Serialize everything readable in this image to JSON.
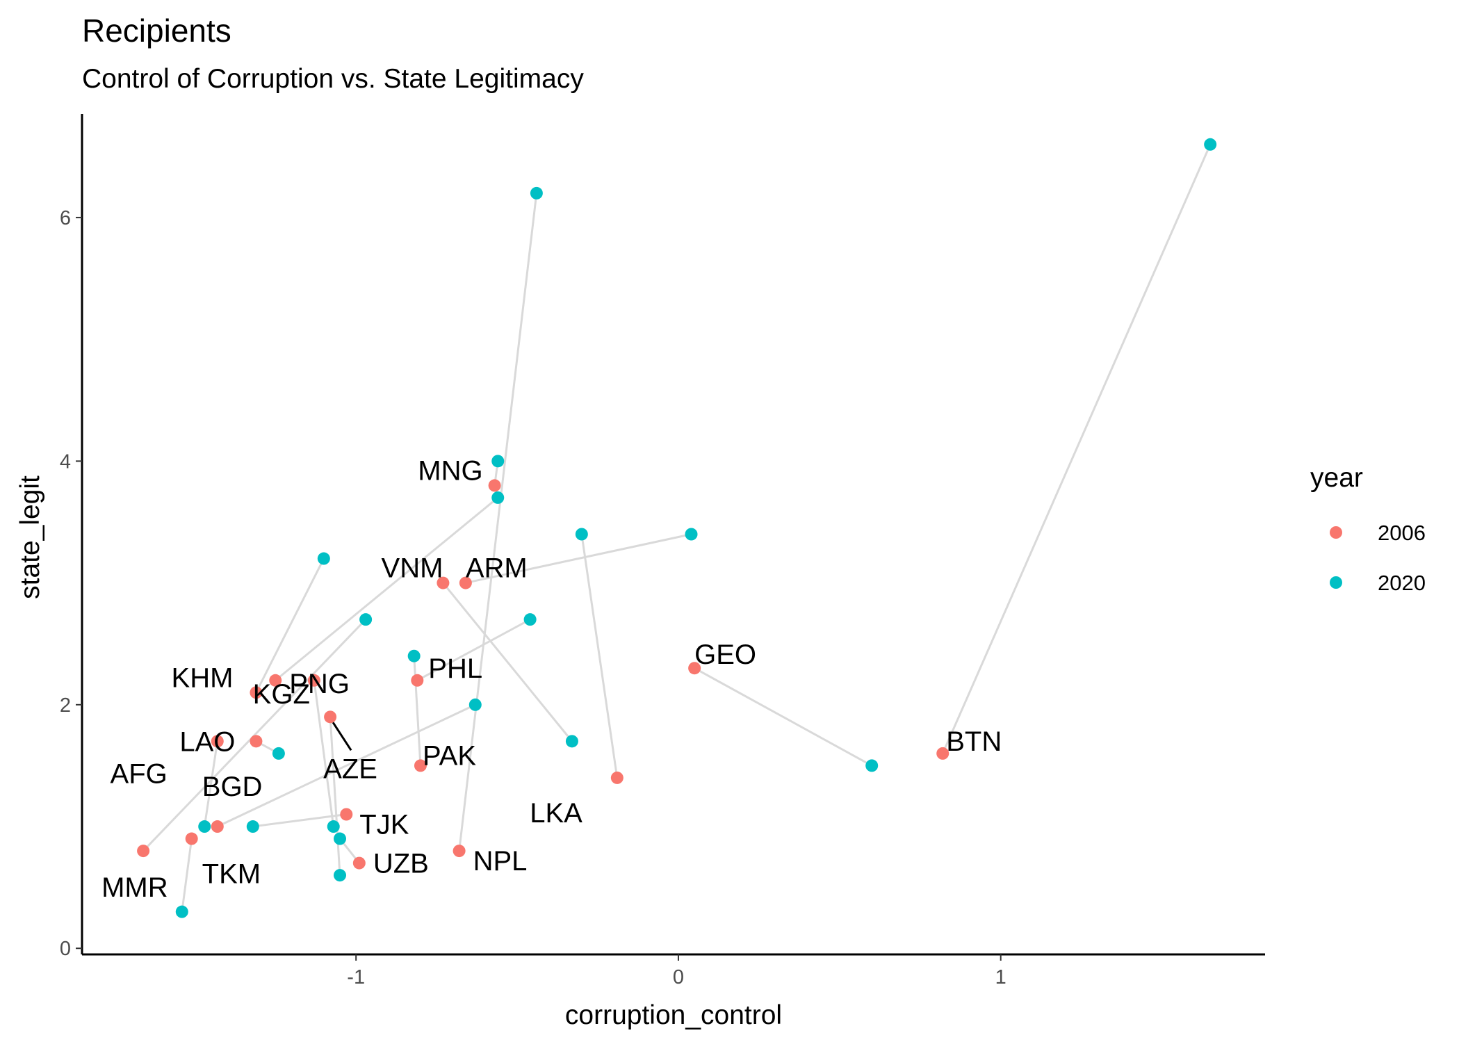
{
  "chart_data": {
    "type": "scatter",
    "title": "Recipients",
    "subtitle": "Control of Corruption vs. State Legitimacy",
    "xlabel": "corruption_control",
    "ylabel": "state_legit",
    "xlim": [
      -1.85,
      1.82
    ],
    "ylim": [
      -0.05,
      6.85
    ],
    "x_ticks": [
      -1,
      0,
      1
    ],
    "y_ticks": [
      0,
      2,
      4,
      6
    ],
    "grid": false,
    "legend": {
      "title": "year",
      "placement": "right",
      "entries": [
        {
          "label": "2006",
          "color": "#F8766D"
        },
        {
          "label": "2020",
          "color": "#00BFC4"
        }
      ]
    },
    "series": [
      {
        "name": "2006",
        "color": "#F8766D"
      },
      {
        "name": "2020",
        "color": "#00BFC4"
      }
    ],
    "countries": [
      {
        "code": "AFG",
        "p2006": [
          -1.43,
          1.7
        ],
        "p2020": [
          -1.47,
          1.0
        ]
      },
      {
        "code": "ARM",
        "p2006": [
          -0.66,
          3.0
        ],
        "p2020": [
          0.04,
          3.4
        ]
      },
      {
        "code": "AZE",
        "p2006": [
          -1.08,
          1.9
        ],
        "p2020": [
          -1.05,
          0.6
        ]
      },
      {
        "code": "BGD",
        "p2006": [
          -1.43,
          1.0
        ],
        "p2020": [
          -0.63,
          2.0
        ]
      },
      {
        "code": "BTN",
        "p2006": [
          0.82,
          1.6
        ],
        "p2020": [
          1.65,
          6.6
        ]
      },
      {
        "code": "GEO",
        "p2006": [
          0.05,
          2.3
        ],
        "p2020": [
          0.6,
          1.5
        ]
      },
      {
        "code": "KGZ",
        "p2006": [
          -1.13,
          2.2
        ],
        "p2020": [
          -1.07,
          1.0
        ]
      },
      {
        "code": "KHM",
        "p2006": [
          -1.31,
          2.1
        ],
        "p2020": [
          -1.1,
          3.2
        ]
      },
      {
        "code": "LAO",
        "p2006": [
          -1.31,
          1.7
        ],
        "p2020": [
          -1.24,
          1.6
        ]
      },
      {
        "code": "LKA",
        "p2006": [
          -0.19,
          1.4
        ],
        "p2020": [
          -0.3,
          3.4
        ]
      },
      {
        "code": "MMR",
        "p2006": [
          -1.66,
          0.8
        ],
        "p2020": [
          -0.97,
          2.7
        ]
      },
      {
        "code": "MNG",
        "p2006": [
          -0.57,
          3.8
        ],
        "p2020": [
          -0.56,
          4.0
        ]
      },
      {
        "code": "NPL",
        "p2006": [
          -0.68,
          0.8
        ],
        "p2020": [
          -0.44,
          6.2
        ]
      },
      {
        "code": "PAK",
        "p2006": [
          -0.8,
          1.5
        ],
        "p2020": [
          -0.82,
          2.4
        ]
      },
      {
        "code": "PHL",
        "p2006": [
          -0.81,
          2.2
        ],
        "p2020": [
          -0.46,
          2.7
        ]
      },
      {
        "code": "PNG",
        "p2006": [
          -1.25,
          2.2
        ],
        "p2020": [
          -0.56,
          3.7
        ]
      },
      {
        "code": "TJK",
        "p2006": [
          -1.03,
          1.1
        ],
        "p2020": [
          -1.32,
          1.0
        ]
      },
      {
        "code": "TKM",
        "p2006": [
          -1.51,
          0.9
        ],
        "p2020": [
          -1.54,
          0.3
        ]
      },
      {
        "code": "UZB",
        "p2006": [
          -0.99,
          0.7
        ],
        "p2020": [
          -1.05,
          0.9
        ]
      },
      {
        "code": "VNM",
        "p2006": [
          -0.73,
          3.0
        ],
        "p2020": [
          -0.33,
          1.7
        ]
      }
    ]
  }
}
